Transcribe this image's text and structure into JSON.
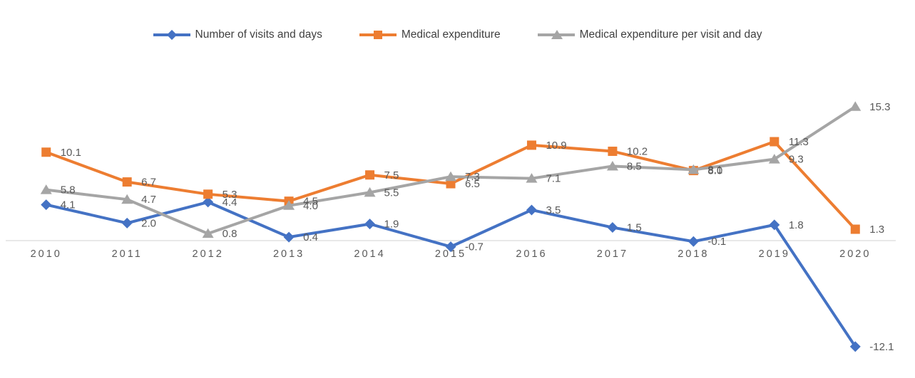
{
  "chart_data": {
    "type": "line",
    "title": "",
    "xlabel": "",
    "ylabel": "",
    "categories": [
      "2010",
      "2011",
      "2012",
      "2013",
      "2014",
      "2015",
      "2016",
      "2017",
      "2018",
      "2019",
      "2020"
    ],
    "series": [
      {
        "name": "Number of visits and days",
        "marker": "diamond",
        "color": "#4472C4",
        "values": [
          4.1,
          2.0,
          4.4,
          0.4,
          1.9,
          -0.7,
          3.5,
          1.5,
          -0.1,
          1.8,
          -12.1
        ]
      },
      {
        "name": "Medical expenditure",
        "marker": "square",
        "color": "#ED7D31",
        "values": [
          10.1,
          6.7,
          5.3,
          4.5,
          7.5,
          6.5,
          10.9,
          10.2,
          8.0,
          11.3,
          1.3
        ]
      },
      {
        "name": "Medical expenditure per visit and day",
        "marker": "triangle",
        "color": "#A5A5A5",
        "values": [
          5.8,
          4.7,
          0.8,
          4.0,
          5.5,
          7.3,
          7.1,
          8.5,
          8.1,
          9.3,
          15.3
        ]
      }
    ],
    "data_labels": true,
    "label_color": "#595959",
    "axis_color": "#D9D9D9",
    "legend_position": "top",
    "gridlines": false,
    "ylim_implied": [
      -13,
      16
    ]
  }
}
